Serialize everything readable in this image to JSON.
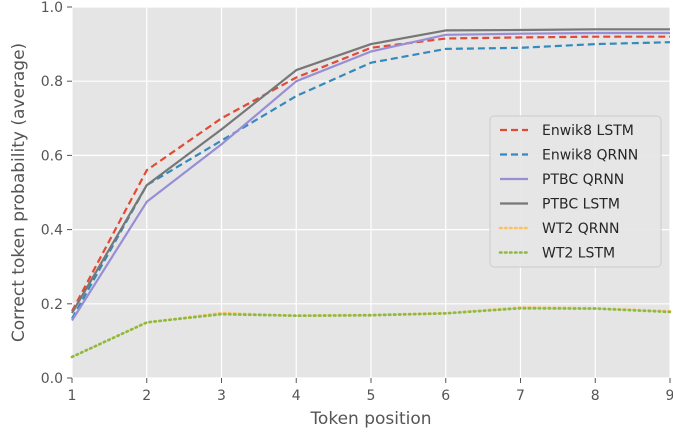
{
  "chart_data": {
    "type": "line",
    "title": "",
    "xlabel": "Token position",
    "ylabel": "Correct token probability (average)",
    "xlim": [
      1,
      9
    ],
    "ylim": [
      0.0,
      1.0
    ],
    "x": [
      1,
      2,
      3,
      4,
      5,
      6,
      7,
      8,
      9
    ],
    "x_ticks": [
      "1",
      "2",
      "3",
      "4",
      "5",
      "6",
      "7",
      "8",
      "9"
    ],
    "y_ticks": [
      "0.0",
      "0.2",
      "0.4",
      "0.6",
      "0.8",
      "1.0"
    ],
    "grid": true,
    "legend_position": "center-right",
    "background": "#e5e5e5",
    "series": [
      {
        "name": "Enwik8 LSTM",
        "color": "#e24a33",
        "style": "dashed",
        "values": [
          0.18,
          0.56,
          0.7,
          0.81,
          0.89,
          0.915,
          0.918,
          0.92,
          0.92
        ]
      },
      {
        "name": "Enwik8 QRNN",
        "color": "#348abd",
        "style": "dashed",
        "values": [
          0.16,
          0.52,
          0.64,
          0.76,
          0.85,
          0.887,
          0.89,
          0.9,
          0.905
        ]
      },
      {
        "name": "PTBC QRNN",
        "color": "#988ed5",
        "style": "solid",
        "values": [
          0.155,
          0.475,
          0.63,
          0.8,
          0.88,
          0.925,
          0.928,
          0.93,
          0.93
        ]
      },
      {
        "name": "PTBC LSTM",
        "color": "#777777",
        "style": "solid",
        "values": [
          0.175,
          0.52,
          0.67,
          0.83,
          0.9,
          0.937,
          0.938,
          0.94,
          0.94
        ]
      },
      {
        "name": "WT2 QRNN",
        "color": "#fbc15e",
        "style": "dotted",
        "values": [
          0.057,
          0.15,
          0.175,
          0.168,
          0.17,
          0.175,
          0.19,
          0.188,
          0.18
        ]
      },
      {
        "name": "WT2 LSTM",
        "color": "#8eba42",
        "style": "dotted",
        "values": [
          0.057,
          0.15,
          0.172,
          0.168,
          0.169,
          0.174,
          0.188,
          0.187,
          0.178
        ]
      }
    ]
  }
}
